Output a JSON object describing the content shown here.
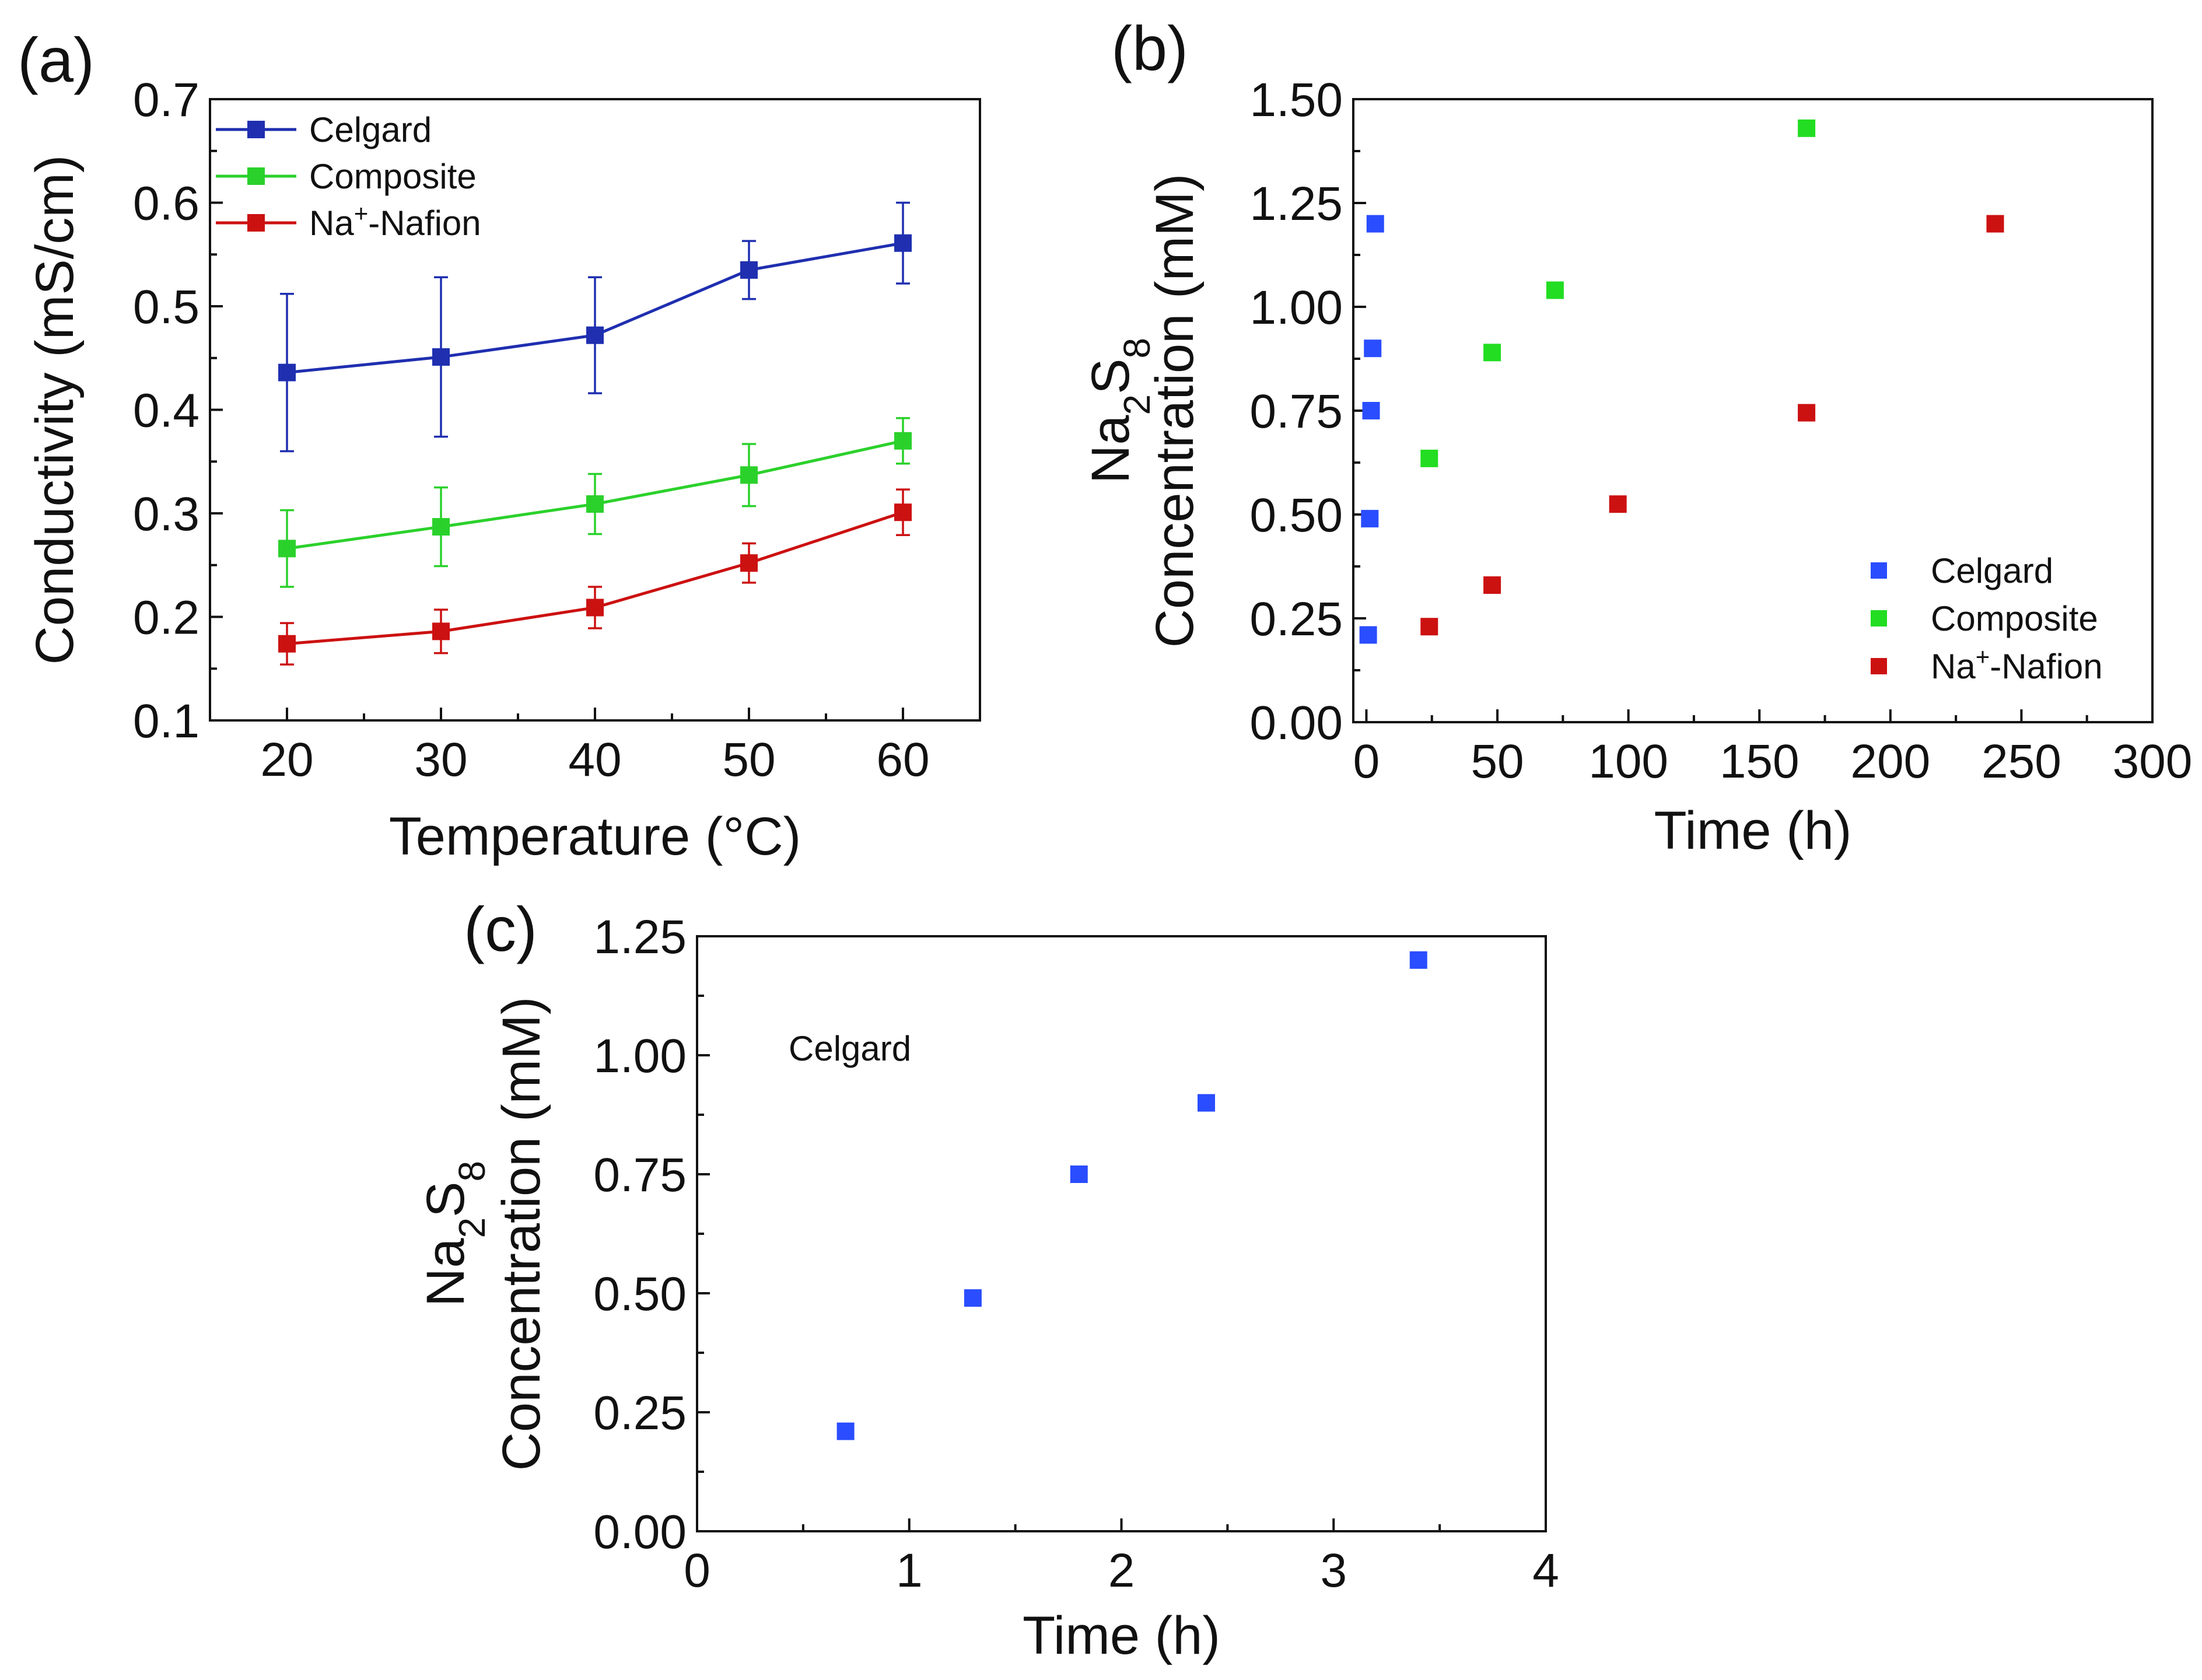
{
  "colors": {
    "celgard_line": "#1f2fb0",
    "composite_line": "#2bd12b",
    "nafion_line": "#cc1111",
    "celgard_scatter": "#2a4dff",
    "composite_scatter": "#22dd22",
    "nafion_scatter": "#cc1111",
    "axis": "#111111"
  },
  "chart_data": [
    {
      "id": "a",
      "panel_label": "(a)",
      "type": "line",
      "xlabel": "Temperature (°C)",
      "ylabel": "Conductivity (mS/cm)",
      "xlim": [
        15,
        65
      ],
      "ylim": [
        0.1,
        0.7
      ],
      "xticks": [
        20,
        30,
        40,
        50,
        60
      ],
      "xtick_labels": [
        "20",
        "30",
        "40",
        "50",
        "60"
      ],
      "yticks": [
        0.1,
        0.2,
        0.3,
        0.4,
        0.5,
        0.6,
        0.7
      ],
      "ytick_labels": [
        "0.1",
        "0.2",
        "0.3",
        "0.4",
        "0.5",
        "0.6",
        "0.7"
      ],
      "legend_position": "top-left",
      "series": [
        {
          "name": "Celgard",
          "color_key": "celgard_line",
          "x": [
            20,
            30,
            40,
            50,
            60
          ],
          "y": [
            0.436,
            0.451,
            0.472,
            0.535,
            0.561
          ],
          "err": [
            0.076,
            0.077,
            0.056,
            0.028,
            0.039
          ]
        },
        {
          "name": "Composite",
          "color_key": "composite_line",
          "x": [
            20,
            30,
            40,
            50,
            60
          ],
          "y": [
            0.266,
            0.287,
            0.309,
            0.337,
            0.37
          ],
          "err": [
            0.037,
            0.038,
            0.029,
            0.03,
            0.022
          ]
        },
        {
          "name": "Na+-Nafion",
          "legend_label": {
            "base": "Na",
            "sup": "+",
            "rest": "-Nafion"
          },
          "color_key": "nafion_line",
          "x": [
            20,
            30,
            40,
            50,
            60
          ],
          "y": [
            0.174,
            0.186,
            0.209,
            0.252,
            0.301
          ],
          "err": [
            0.02,
            0.021,
            0.02,
            0.019,
            0.022
          ]
        }
      ]
    },
    {
      "id": "b",
      "panel_label": "(b)",
      "type": "scatter",
      "xlabel": "Time (h)",
      "ylabel_line1": {
        "base": "Na",
        "sub1": "2",
        "mid": "S",
        "sub2": "8"
      },
      "ylabel_line2": "Concentration (mM)",
      "xlim": [
        -5,
        300
      ],
      "ylim": [
        0.0,
        1.5
      ],
      "xticks": [
        0,
        50,
        100,
        150,
        200,
        250,
        300
      ],
      "xtick_labels": [
        "0",
        "50",
        "100",
        "150",
        "200",
        "250",
        "300"
      ],
      "yticks": [
        0.0,
        0.25,
        0.5,
        0.75,
        1.0,
        1.25,
        1.5
      ],
      "ytick_labels": [
        "0.00",
        "0.25",
        "0.50",
        "0.75",
        "1.00",
        "1.25",
        "1.50"
      ],
      "legend_position": "bottom-right",
      "series": [
        {
          "name": "Celgard",
          "color_key": "celgard_scatter",
          "x": [
            0.7,
            1.3,
            1.8,
            2.4,
            3.4
          ],
          "y": [
            0.21,
            0.49,
            0.75,
            0.9,
            1.2
          ]
        },
        {
          "name": "Composite",
          "color_key": "composite_scatter",
          "x": [
            24,
            48,
            72,
            168
          ],
          "y": [
            0.635,
            0.89,
            1.04,
            1.43
          ]
        },
        {
          "name": "Na+-Nafion",
          "legend_label": {
            "base": "Na",
            "sup": "+",
            "rest": "-Nafion"
          },
          "color_key": "nafion_scatter",
          "x": [
            24,
            48,
            96,
            168,
            240
          ],
          "y": [
            0.23,
            0.33,
            0.525,
            0.745,
            1.2
          ]
        }
      ]
    },
    {
      "id": "c",
      "panel_label": "(c)",
      "type": "scatter",
      "xlabel": "Time (h)",
      "ylabel_line1": {
        "base": "Na",
        "sub1": "2",
        "mid": "S",
        "sub2": "8"
      },
      "ylabel_line2": "Concentration (mM)",
      "xlim": [
        0,
        4
      ],
      "ylim": [
        0.0,
        1.25
      ],
      "xticks": [
        0,
        1,
        2,
        3,
        4
      ],
      "xtick_labels": [
        "0",
        "1",
        "2",
        "3",
        "4"
      ],
      "yticks": [
        0.0,
        0.25,
        0.5,
        0.75,
        1.0,
        1.25
      ],
      "ytick_labels": [
        "0.00",
        "0.25",
        "0.50",
        "0.75",
        "1.00",
        "1.25"
      ],
      "annotation": "Celgard",
      "series": [
        {
          "name": "Celgard",
          "color_key": "celgard_scatter",
          "x": [
            0.7,
            1.3,
            1.8,
            2.4,
            3.4
          ],
          "y": [
            0.21,
            0.49,
            0.75,
            0.9,
            1.2
          ]
        }
      ]
    }
  ]
}
